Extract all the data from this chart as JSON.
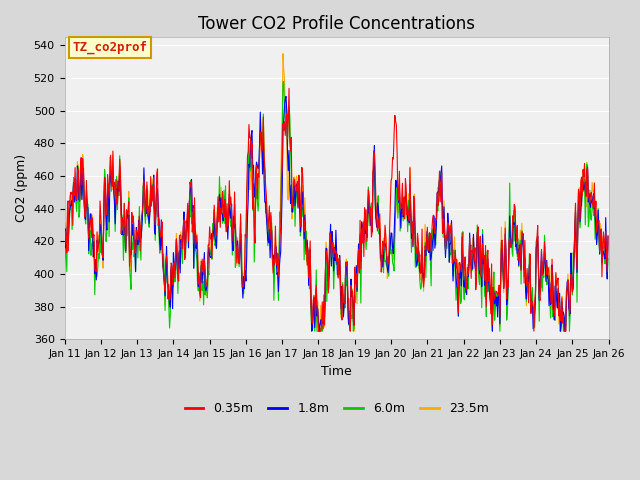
{
  "title": "Tower CO2 Profile Concentrations",
  "xlabel": "Time",
  "ylabel": "CO2 (ppm)",
  "ylim": [
    360,
    545
  ],
  "yticks": [
    360,
    380,
    400,
    420,
    440,
    460,
    480,
    500,
    520,
    540
  ],
  "legend_labels": [
    "0.35m",
    "1.8m",
    "6.0m",
    "23.5m"
  ],
  "legend_colors": [
    "#ff0000",
    "#0000ff",
    "#00cc00",
    "#ffaa00"
  ],
  "annotation_text": "TZ_co2prof",
  "annotation_bg": "#ffffcc",
  "annotation_border": "#cc9900",
  "annotation_text_color": "#cc2200",
  "grid_color": "#ffffff",
  "plot_bg_color": "#f0f0f0",
  "fig_bg_color": "#d8d8d8",
  "title_fontsize": 12
}
